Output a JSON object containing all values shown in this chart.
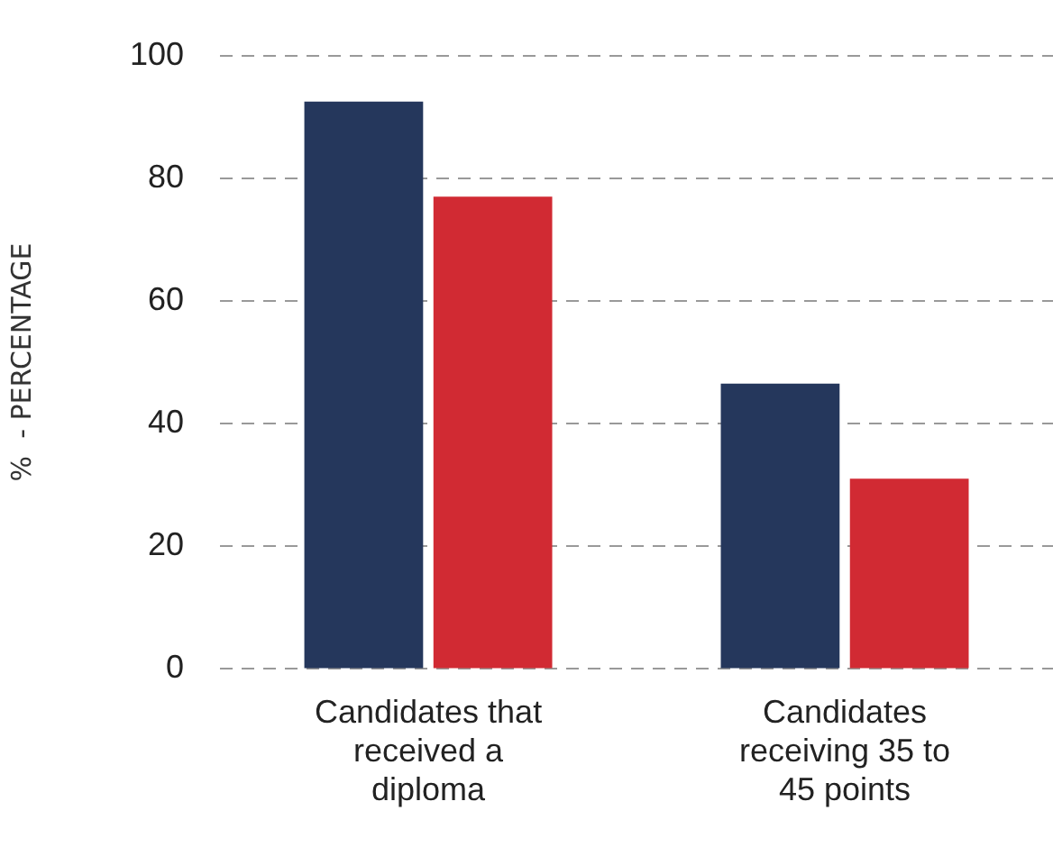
{
  "chart_data": {
    "type": "bar",
    "ylabel": "%  - PERCENTAGE",
    "categories": [
      "Candidates that received a diploma",
      "Candidates receiving 35 to 45 points"
    ],
    "series": [
      {
        "color": "#25375c",
        "values": [
          92.5,
          46.5
        ]
      },
      {
        "color": "#d12a33",
        "values": [
          77,
          31
        ]
      }
    ],
    "ylim": [
      0,
      100
    ],
    "yticks": [
      0,
      20,
      40,
      60,
      80,
      100
    ],
    "grid": "y",
    "legend": false
  }
}
